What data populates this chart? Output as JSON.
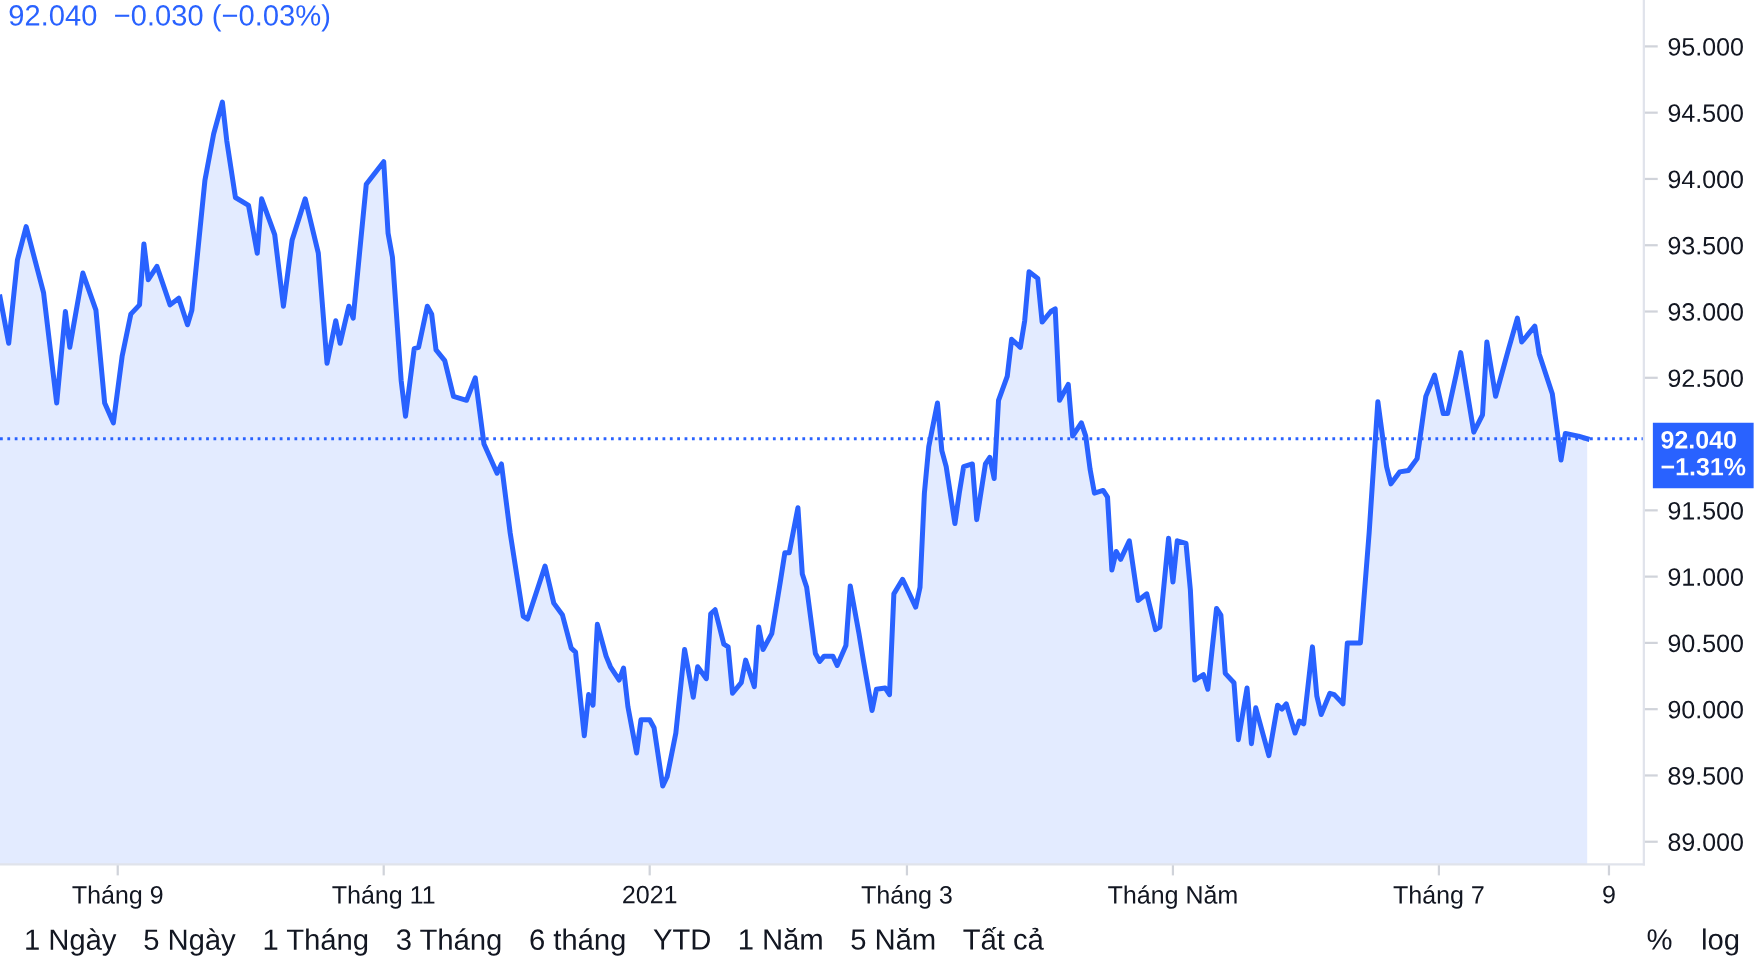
{
  "chart_data": {
    "type": "area",
    "title": "92.040  −0.030 (−0.03%)",
    "x": [
      "2020-08-05",
      "2020-08-07",
      "2020-08-09",
      "2020-08-11",
      "2020-08-15",
      "2020-08-18",
      "2020-08-20",
      "2020-08-21",
      "2020-08-24",
      "2020-08-27",
      "2020-08-29",
      "2020-08-31",
      "2020-09-02",
      "2020-09-04",
      "2020-09-06",
      "2020-09-07",
      "2020-09-08",
      "2020-09-10",
      "2020-09-13",
      "2020-09-15",
      "2020-09-17",
      "2020-09-18",
      "2020-09-21",
      "2020-09-23",
      "2020-09-25",
      "2020-09-26",
      "2020-09-28",
      "2020-10-01",
      "2020-10-03",
      "2020-10-04",
      "2020-10-07",
      "2020-10-09",
      "2020-10-11",
      "2020-10-14",
      "2020-10-17",
      "2020-10-19",
      "2020-10-21",
      "2020-10-22",
      "2020-10-24",
      "2020-10-25",
      "2020-10-28",
      "2020-11-01",
      "2020-11-02",
      "2020-11-03",
      "2020-11-05",
      "2020-11-06",
      "2020-11-08",
      "2020-11-09",
      "2020-11-11",
      "2020-11-12",
      "2020-11-13",
      "2020-11-15",
      "2020-11-17",
      "2020-11-20",
      "2020-11-22",
      "2020-11-24",
      "2020-11-27",
      "2020-11-28",
      "2020-11-30",
      "2020-12-03",
      "2020-12-04",
      "2020-12-08",
      "2020-12-10",
      "2020-12-12",
      "2020-12-14",
      "2020-12-15",
      "2020-12-17",
      "2020-12-18",
      "2020-12-19",
      "2020-12-20",
      "2020-12-22",
      "2020-12-23",
      "2020-12-25",
      "2020-12-26",
      "2020-12-27",
      "2020-12-29",
      "2020-12-30",
      "2021-01-01",
      "2021-01-02",
      "2021-01-04",
      "2021-01-05",
      "2021-01-07",
      "2021-01-09",
      "2021-01-11",
      "2021-01-12",
      "2021-01-14",
      "2021-01-15",
      "2021-01-16",
      "2021-01-18",
      "2021-01-19",
      "2021-01-20",
      "2021-01-22",
      "2021-01-23",
      "2021-01-25",
      "2021-01-26",
      "2021-01-27",
      "2021-01-29",
      "2021-01-31",
      "2021-02-01",
      "2021-02-02",
      "2021-02-04",
      "2021-02-05",
      "2021-02-06",
      "2021-02-08",
      "2021-02-09",
      "2021-02-10",
      "2021-02-12",
      "2021-02-13",
      "2021-02-15",
      "2021-02-16",
      "2021-02-18",
      "2021-02-19",
      "2021-02-21",
      "2021-02-22",
      "2021-02-24",
      "2021-02-25",
      "2021-02-26",
      "2021-02-28",
      "2021-03-03",
      "2021-03-04",
      "2021-03-05",
      "2021-03-06",
      "2021-03-08",
      "2021-03-09",
      "2021-03-10",
      "2021-03-12",
      "2021-03-13",
      "2021-03-14",
      "2021-03-16",
      "2021-03-17",
      "2021-03-19",
      "2021-03-20",
      "2021-03-21",
      "2021-03-22",
      "2021-03-24",
      "2021-03-25",
      "2021-03-27",
      "2021-03-28",
      "2021-03-29",
      "2021-03-31",
      "2021-04-01",
      "2021-04-03",
      "2021-04-04",
      "2021-04-05",
      "2021-04-07",
      "2021-04-08",
      "2021-04-10",
      "2021-04-11",
      "2021-04-12",
      "2021-04-13",
      "2021-04-15",
      "2021-04-16",
      "2021-04-17",
      "2021-04-18",
      "2021-04-19",
      "2021-04-21",
      "2021-04-23",
      "2021-04-25",
      "2021-04-27",
      "2021-04-28",
      "2021-04-30",
      "2021-05-01",
      "2021-05-02",
      "2021-05-04",
      "2021-05-05",
      "2021-05-06",
      "2021-05-08",
      "2021-05-09",
      "2021-05-11",
      "2021-05-12",
      "2021-05-13",
      "2021-05-15",
      "2021-05-16",
      "2021-05-18",
      "2021-05-19",
      "2021-05-20",
      "2021-05-23",
      "2021-05-25",
      "2021-05-26",
      "2021-05-27",
      "2021-05-29",
      "2021-05-30",
      "2021-05-31",
      "2021-06-02",
      "2021-06-03",
      "2021-06-04",
      "2021-06-06",
      "2021-06-07",
      "2021-06-09",
      "2021-06-10",
      "2021-06-13",
      "2021-06-15",
      "2021-06-17",
      "2021-06-19",
      "2021-06-20",
      "2021-06-22",
      "2021-06-24",
      "2021-06-26",
      "2021-06-28",
      "2021-06-30",
      "2021-07-02",
      "2021-07-03",
      "2021-07-05",
      "2021-07-06",
      "2021-07-09",
      "2021-07-11",
      "2021-07-12",
      "2021-07-14",
      "2021-07-16",
      "2021-07-17",
      "2021-07-19",
      "2021-07-20",
      "2021-07-23",
      "2021-07-24",
      "2021-07-27",
      "2021-07-29",
      "2021-07-30",
      "2021-08-02",
      "2021-08-04"
    ],
    "series": [
      {
        "color": "#2962ff",
        "values": [
          93.11,
          92.76,
          93.39,
          93.64,
          93.14,
          92.31,
          93.0,
          92.73,
          93.29,
          93.01,
          92.31,
          92.16,
          92.66,
          92.98,
          93.05,
          93.51,
          93.24,
          93.34,
          93.05,
          93.1,
          92.9,
          93.01,
          93.99,
          94.34,
          94.58,
          94.29,
          93.86,
          93.8,
          93.44,
          93.85,
          93.58,
          93.04,
          93.54,
          93.85,
          93.44,
          92.61,
          92.93,
          92.76,
          93.04,
          92.95,
          93.96,
          94.13,
          93.59,
          93.41,
          92.48,
          92.21,
          92.72,
          92.73,
          93.04,
          92.98,
          92.71,
          92.63,
          92.36,
          92.33,
          92.5,
          92.0,
          91.78,
          91.85,
          91.33,
          90.7,
          90.68,
          91.08,
          90.8,
          90.71,
          90.46,
          90.43,
          89.8,
          90.11,
          90.03,
          90.64,
          90.4,
          90.32,
          90.22,
          90.31,
          90.02,
          89.67,
          89.92,
          89.92,
          89.86,
          89.42,
          89.49,
          89.82,
          90.45,
          90.09,
          90.32,
          90.23,
          90.72,
          90.75,
          90.49,
          90.47,
          90.12,
          90.2,
          90.37,
          90.17,
          90.62,
          90.45,
          90.57,
          90.97,
          91.18,
          91.18,
          91.52,
          91.02,
          90.92,
          90.42,
          90.36,
          90.4,
          90.4,
          90.33,
          90.48,
          90.93,
          90.57,
          90.37,
          89.99,
          90.15,
          90.16,
          90.11,
          90.87,
          90.98,
          90.77,
          90.92,
          91.63,
          91.98,
          92.31,
          91.95,
          91.83,
          91.4,
          91.63,
          91.83,
          91.85,
          91.43,
          91.85,
          91.9,
          91.74,
          92.33,
          92.51,
          92.79,
          92.73,
          92.93,
          93.3,
          93.25,
          92.92,
          93.0,
          93.02,
          92.33,
          92.45,
          92.06,
          92.16,
          92.06,
          91.81,
          91.63,
          91.65,
          91.6,
          91.05,
          91.19,
          91.13,
          91.27,
          90.82,
          90.87,
          90.6,
          90.62,
          91.29,
          90.96,
          91.27,
          91.25,
          90.9,
          90.22,
          90.26,
          90.15,
          90.76,
          90.71,
          90.27,
          90.2,
          89.77,
          90.16,
          89.74,
          90.01,
          89.65,
          90.03,
          90.0,
          90.04,
          89.82,
          89.91,
          89.89,
          90.47,
          90.1,
          89.96,
          90.12,
          90.11,
          90.04,
          90.5,
          90.5,
          91.33,
          92.32,
          91.83,
          91.7,
          91.79,
          91.8,
          91.89,
          92.36,
          92.52,
          92.23,
          92.23,
          92.53,
          92.69,
          92.09,
          92.22,
          92.77,
          92.36,
          92.6,
          92.72,
          92.95,
          92.77,
          92.89,
          92.68,
          92.38,
          91.88,
          92.08,
          92.06,
          92.04
        ]
      }
    ],
    "xlim": [
      "2020-08-05",
      "2021-08-17"
    ],
    "xticks": [
      {
        "value": "2020-09-01",
        "label": "Tháng 9"
      },
      {
        "value": "2020-11-01",
        "label": "Tháng 11"
      },
      {
        "value": "2021-01-01",
        "label": "2021"
      },
      {
        "value": "2021-03-01",
        "label": "Tháng 3"
      },
      {
        "value": "2021-05-01",
        "label": "Tháng Năm"
      },
      {
        "value": "2021-07-01",
        "label": "Tháng 7"
      },
      {
        "value": "2021-08-09",
        "label": "9"
      }
    ],
    "ylim": [
      88.83,
      95.35
    ],
    "yticks": [
      {
        "value": 89,
        "label": "89.000"
      },
      {
        "value": 89.5,
        "label": "89.500"
      },
      {
        "value": 90,
        "label": "90.000"
      },
      {
        "value": 90.5,
        "label": "90.500"
      },
      {
        "value": 91,
        "label": "91.000"
      },
      {
        "value": 91.5,
        "label": "91.500"
      },
      {
        "value": 92.5,
        "label": "92.500"
      },
      {
        "value": 93,
        "label": "93.000"
      },
      {
        "value": 93.5,
        "label": "93.500"
      },
      {
        "value": 94,
        "label": "94.000"
      },
      {
        "value": 94.5,
        "label": "94.500"
      },
      {
        "value": 95,
        "label": "95.000"
      }
    ],
    "ref_lines": [
      {
        "axis": "y",
        "value": 92.04,
        "label": "92.040\n−1.31%",
        "color": "#2962ff",
        "line_style": "dotted"
      }
    ],
    "annotations": [
      "1 Ngày",
      "5 Ngày",
      "1 Tháng",
      "3 Tháng",
      "6 tháng",
      "YTD",
      "1 Năm",
      "5 Năm",
      "Tất cả",
      "%",
      "log"
    ],
    "grid": false,
    "legend": false,
    "marker": "none",
    "line_style": "solid"
  }
}
